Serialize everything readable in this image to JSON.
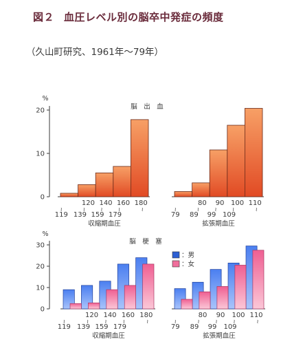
{
  "title_label": "図２",
  "title": "血圧レベル別の脳卒中発症の頻度",
  "subtitle": "（久山町研究、1961年〜79年）",
  "colors": {
    "orange_top": "#f7a066",
    "orange_bottom": "#e14a24",
    "male": "#2d5fd3",
    "female": "#f06f9c",
    "axis": "#3a3a3a"
  },
  "chart_data": [
    {
      "type": "bar",
      "title": "脳　出　血",
      "panels": [
        {
          "xlabel": "収縮期血圧",
          "categories": [
            {
              "lo": "",
              "hi": "119"
            },
            {
              "lo": "120",
              "hi": "139"
            },
            {
              "lo": "140",
              "hi": "159"
            },
            {
              "lo": "160",
              "hi": "179"
            },
            {
              "lo": "180",
              "hi": ""
            }
          ],
          "values": [
            0.8,
            2.8,
            5.5,
            7.0,
            17.8
          ]
        },
        {
          "xlabel": "拡張期血圧",
          "categories": [
            {
              "lo": "",
              "hi": "79"
            },
            {
              "lo": "80",
              "hi": "89"
            },
            {
              "lo": "90",
              "hi": "99"
            },
            {
              "lo": "100",
              "hi": "109"
            },
            {
              "lo": "110",
              "hi": ""
            }
          ],
          "values": [
            1.2,
            3.2,
            10.8,
            16.5,
            20.4
          ]
        }
      ],
      "ylabel": "%",
      "ylim": [
        0,
        20
      ],
      "yticks": [
        0,
        10,
        20
      ],
      "grid": false
    },
    {
      "type": "bar",
      "title": "脳　梗　塞",
      "panels": [
        {
          "xlabel": "収縮期血圧",
          "categories": [
            {
              "lo": "",
              "hi": "119"
            },
            {
              "lo": "120",
              "hi": "139"
            },
            {
              "lo": "140",
              "hi": "159"
            },
            {
              "lo": "160",
              "hi": "179"
            },
            {
              "lo": "180",
              "hi": ""
            }
          ],
          "series": [
            {
              "name": "男",
              "values": [
                9.0,
                11.0,
                13.0,
                21.0,
                24.0
              ]
            },
            {
              "name": "女",
              "values": [
                2.5,
                2.8,
                9.0,
                11.0,
                21.0
              ]
            }
          ]
        },
        {
          "xlabel": "拡張期血圧",
          "categories": [
            {
              "lo": "",
              "hi": "79"
            },
            {
              "lo": "80",
              "hi": "89"
            },
            {
              "lo": "90",
              "hi": "99"
            },
            {
              "lo": "100",
              "hi": "109"
            },
            {
              "lo": "110",
              "hi": ""
            }
          ],
          "series": [
            {
              "name": "男",
              "values": [
                9.5,
                12.5,
                18.5,
                21.5,
                29.5
              ]
            },
            {
              "name": "女",
              "values": [
                4.5,
                8.0,
                10.5,
                20.5,
                27.5
              ]
            }
          ]
        }
      ],
      "ylabel": "%",
      "ylim": [
        0,
        30
      ],
      "yticks": [
        0,
        10,
        20,
        30
      ],
      "legend": {
        "prefix": "：",
        "placement": "top-center"
      },
      "grid": false
    }
  ]
}
